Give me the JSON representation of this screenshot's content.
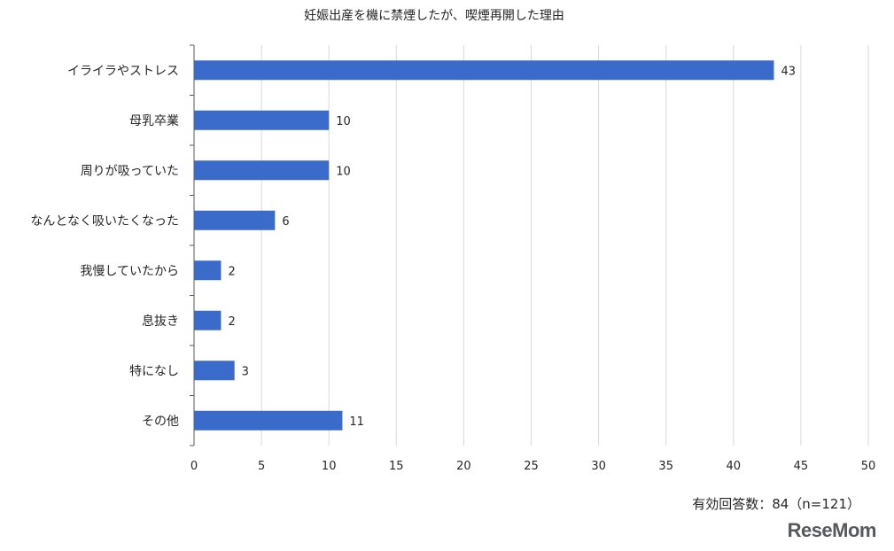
{
  "chart_data": {
    "type": "bar",
    "orientation": "horizontal",
    "title": "妊娠出産を機に禁煙したが、喫煙再開した理由",
    "categories": [
      "イライラやストレス",
      "母乳卒業",
      "周りが吸っていた",
      "なんとなく吸いたくなった",
      "我慢していたから",
      "息抜き",
      "特になし",
      "その他"
    ],
    "values": [
      43,
      10,
      10,
      6,
      2,
      2,
      3,
      11
    ],
    "xlim": [
      0,
      50
    ],
    "xticks": [
      0,
      5,
      10,
      15,
      20,
      25,
      30,
      35,
      40,
      45,
      50
    ],
    "grid": true,
    "bar_color": "#3a6bcb"
  },
  "note": "有効回答数：84（n=121）",
  "brand": "ReseMom"
}
